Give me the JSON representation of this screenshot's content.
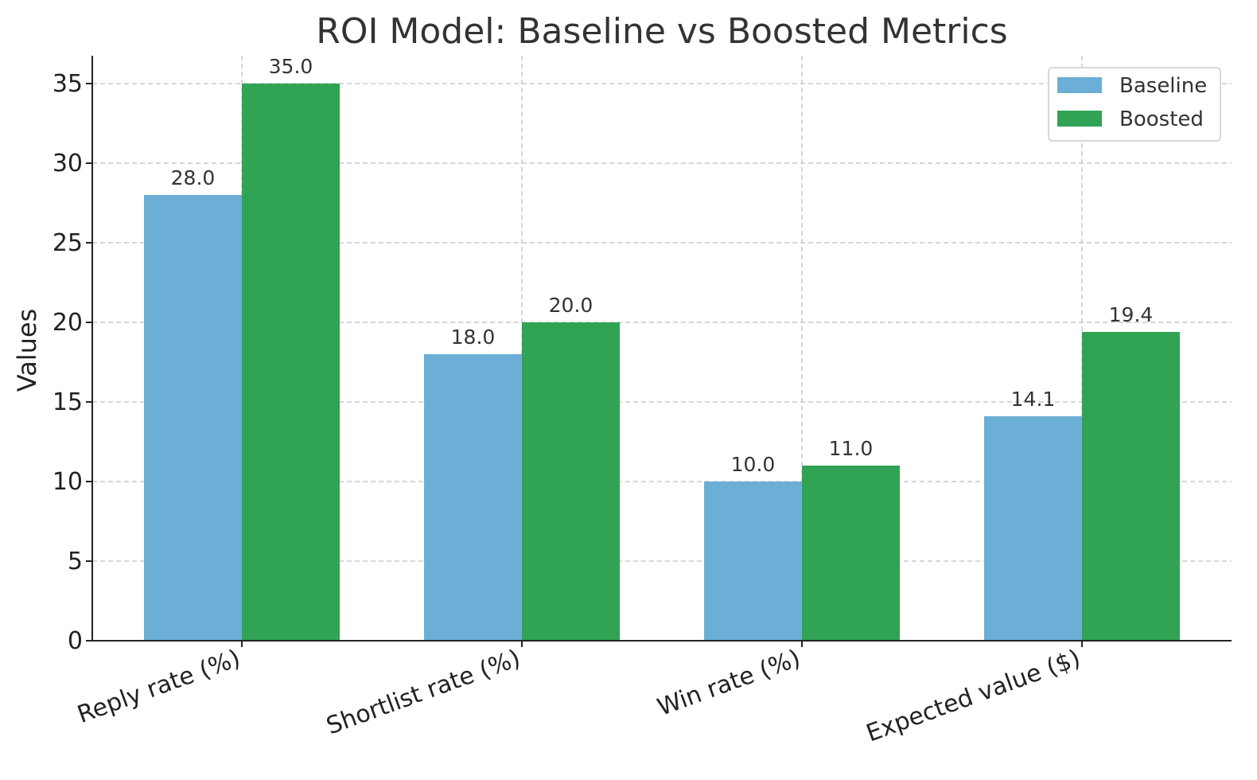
{
  "chart_data": {
    "type": "bar",
    "title": "ROI Model: Baseline vs Boosted Metrics",
    "xlabel": "",
    "ylabel": "Values",
    "ylim": [
      0,
      36.75
    ],
    "yticks": [
      0,
      5,
      10,
      15,
      20,
      25,
      30,
      35
    ],
    "categories": [
      "Reply rate (%)",
      "Shortlist rate (%)",
      "Win rate (%)",
      "Expected value ($)"
    ],
    "series": [
      {
        "name": "Baseline",
        "values": [
          28.0,
          18.0,
          10.0,
          14.1
        ],
        "labels": [
          "28.0",
          "18.0",
          "10.0",
          "14.1"
        ],
        "color": "#6baed6"
      },
      {
        "name": "Boosted",
        "values": [
          35.0,
          20.0,
          11.0,
          19.4
        ],
        "labels": [
          "35.0",
          "20.0",
          "11.0",
          "19.4"
        ],
        "color": "#31a354"
      }
    ],
    "grid": true,
    "legend": "top-right"
  }
}
